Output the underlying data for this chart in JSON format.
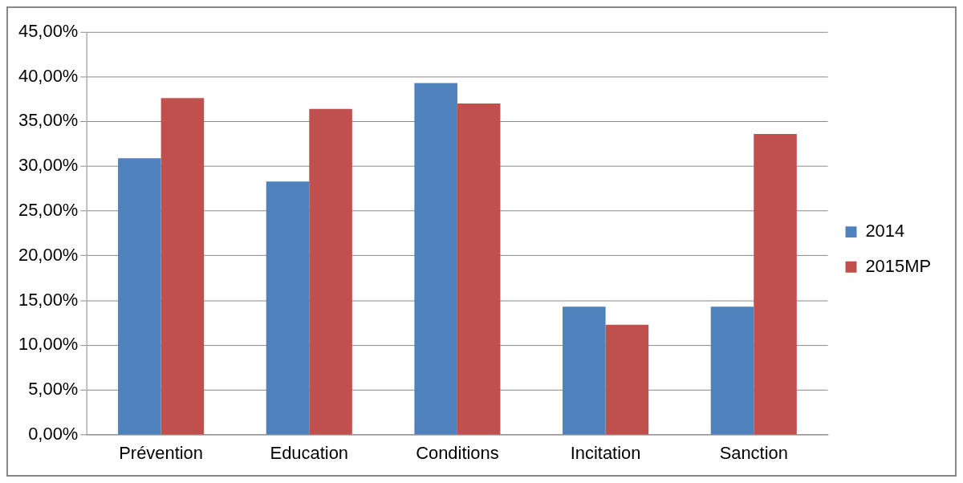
{
  "chart_data": {
    "type": "bar",
    "categories": [
      "Prévention",
      "Education",
      "Conditions",
      "Incitation",
      "Sanction"
    ],
    "series": [
      {
        "name": "2014",
        "color": "#4f81bd",
        "values": [
          30.9,
          28.3,
          39.3,
          14.3,
          14.3
        ]
      },
      {
        "name": "2015MP",
        "color": "#c0504d",
        "values": [
          37.6,
          36.4,
          37.0,
          12.3,
          33.6
        ]
      }
    ],
    "ylim": [
      0,
      45
    ],
    "yticks": [
      {
        "value": 0,
        "label": "0,00%"
      },
      {
        "value": 5,
        "label": "5,00%"
      },
      {
        "value": 10,
        "label": "10,00%"
      },
      {
        "value": 15,
        "label": "15,00%"
      },
      {
        "value": 20,
        "label": "20,00%"
      },
      {
        "value": 25,
        "label": "25,00%"
      },
      {
        "value": 30,
        "label": "30,00%"
      },
      {
        "value": 35,
        "label": "35,00%"
      },
      {
        "value": 40,
        "label": "40,00%"
      },
      {
        "value": 45,
        "label": "45,00%"
      }
    ],
    "grid": "y",
    "legend": "right"
  }
}
